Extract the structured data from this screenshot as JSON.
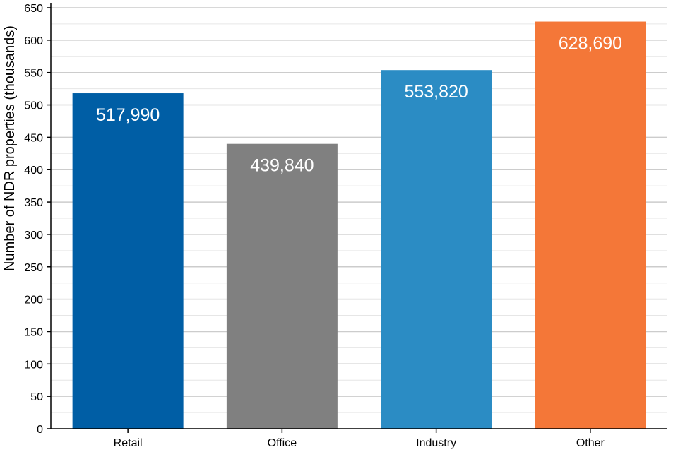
{
  "chart_data": {
    "type": "bar",
    "title": "",
    "xlabel": "",
    "ylabel": "Number of NDR properties (thousands)",
    "categories": [
      "Retail",
      "Office",
      "Industry",
      "Other"
    ],
    "values": [
      517.99,
      439.84,
      553.82,
      628.69
    ],
    "data_labels": [
      "517,990",
      "439,840",
      "553,820",
      "628,690"
    ],
    "colors": [
      "#005EA5",
      "#808080",
      "#2B8CC4",
      "#F47738"
    ],
    "ylim": [
      0,
      650
    ],
    "yticks": [
      "0",
      "50",
      "100",
      "150",
      "200",
      "250",
      "300",
      "350",
      "400",
      "450",
      "500",
      "550",
      "600",
      "650"
    ],
    "grid": true,
    "legend": "none"
  }
}
